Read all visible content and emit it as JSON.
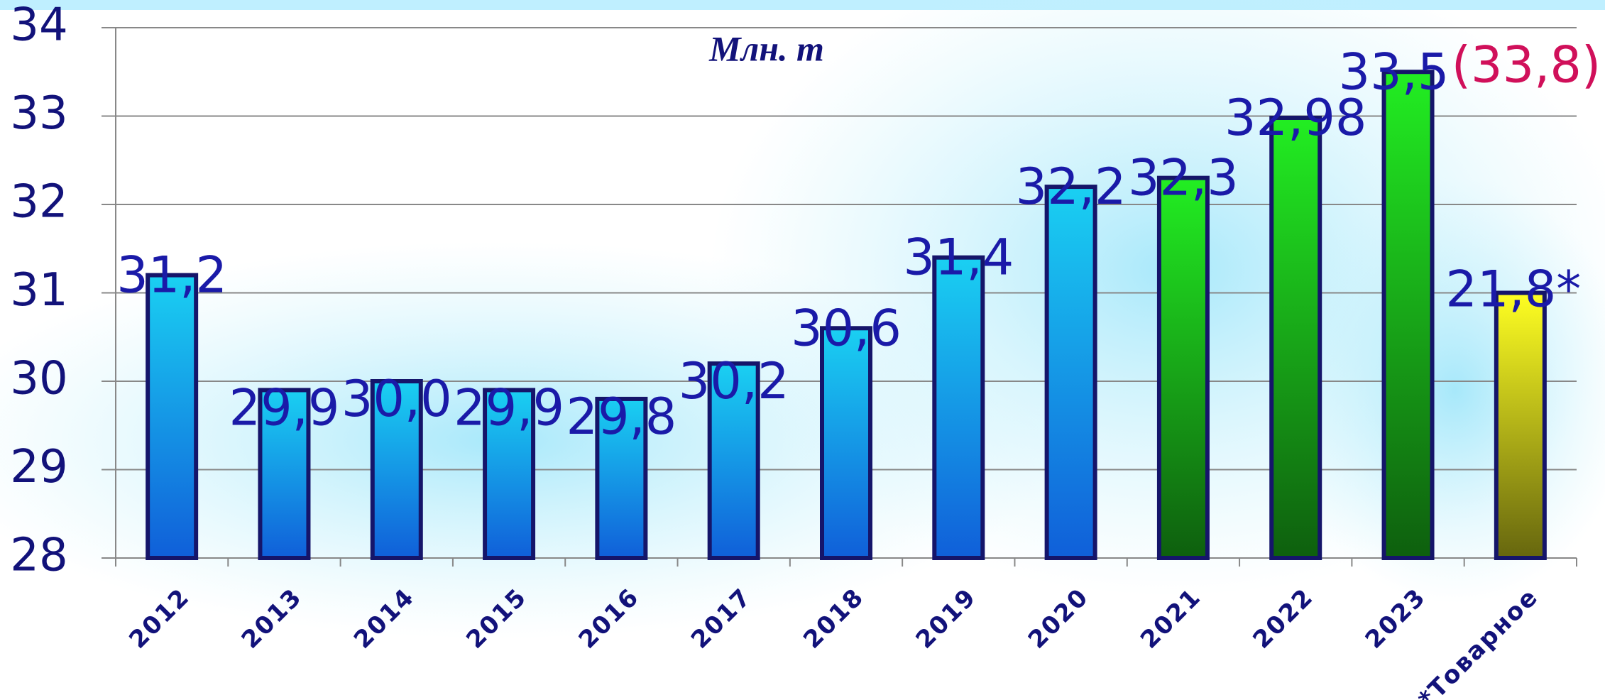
{
  "chart_data": {
    "type": "bar",
    "title": "Млн. т",
    "categories": [
      "2012",
      "2013",
      "2014",
      "2015",
      "2016",
      "2017",
      "2018",
      "2019",
      "2020",
      "2021",
      "2022",
      "2023",
      "*Товарное"
    ],
    "values": [
      31.2,
      29.9,
      30.0,
      29.9,
      29.8,
      30.2,
      30.6,
      31.4,
      32.2,
      32.3,
      32.98,
      33.5,
      31
    ],
    "value_labels": [
      "31,2",
      "29,9",
      "30,0",
      "29,9",
      "29,8",
      "30,2",
      "30,6",
      "31,4",
      "32,2",
      "32,3",
      "32,98",
      "33,5",
      null
    ],
    "colors": [
      "#1ad0f2",
      "#1ad0f2",
      "#1ad0f2",
      "#1ad0f2",
      "#1ad0f2",
      "#1ad0f2",
      "#1ad0f2",
      "#1ad0f2",
      "#1ad0f2",
      "#22ee22",
      "#22ee22",
      "#22ee22",
      "#ffff22"
    ],
    "annotations": [
      {
        "text": "(33,8)",
        "color": "#d0105a"
      },
      {
        "text": "21,8*",
        "color": "#1a1aa8"
      }
    ],
    "ylim": [
      28,
      34
    ],
    "yticks": [
      28,
      29,
      30,
      31,
      32,
      33,
      34
    ],
    "grid": true
  }
}
